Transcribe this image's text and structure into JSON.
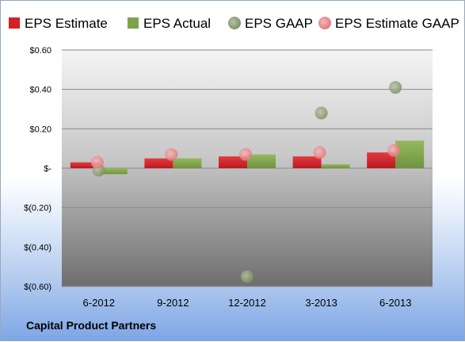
{
  "footer": {
    "company": "Capital Product Partners"
  },
  "colors": {
    "eps_estimate": "#d22127",
    "eps_actual": "#7fa34a",
    "eps_gaap": "#8d9e76",
    "eps_estimate_gaap": "#ef8f91"
  },
  "chart_data": {
    "type": "bar",
    "categories": [
      "6-2012",
      "9-2012",
      "12-2012",
      "3-2013",
      "6-2013"
    ],
    "series": [
      {
        "name": "EPS Estimate",
        "kind": "bar",
        "values": [
          0.03,
          0.05,
          0.06,
          0.06,
          0.08
        ]
      },
      {
        "name": "EPS Actual",
        "kind": "bar",
        "values": [
          -0.03,
          0.05,
          0.07,
          0.02,
          0.14
        ]
      },
      {
        "name": "EPS GAAP",
        "kind": "scatter",
        "values": [
          -0.01,
          null,
          -0.55,
          0.28,
          0.41
        ]
      },
      {
        "name": "EPS Estimate GAAP",
        "kind": "scatter",
        "values": [
          0.03,
          0.07,
          0.07,
          0.08,
          0.09
        ]
      }
    ],
    "yticks": [
      "$0.60",
      "$0.40",
      "$0.20",
      "$-",
      "$(0.20)",
      "$(0.40)",
      "$(0.60)"
    ],
    "ytick_values": [
      0.6,
      0.4,
      0.2,
      0,
      -0.2,
      -0.4,
      -0.6
    ],
    "ylim": [
      -0.6,
      0.6
    ],
    "grid": true,
    "legend_position": "top"
  }
}
